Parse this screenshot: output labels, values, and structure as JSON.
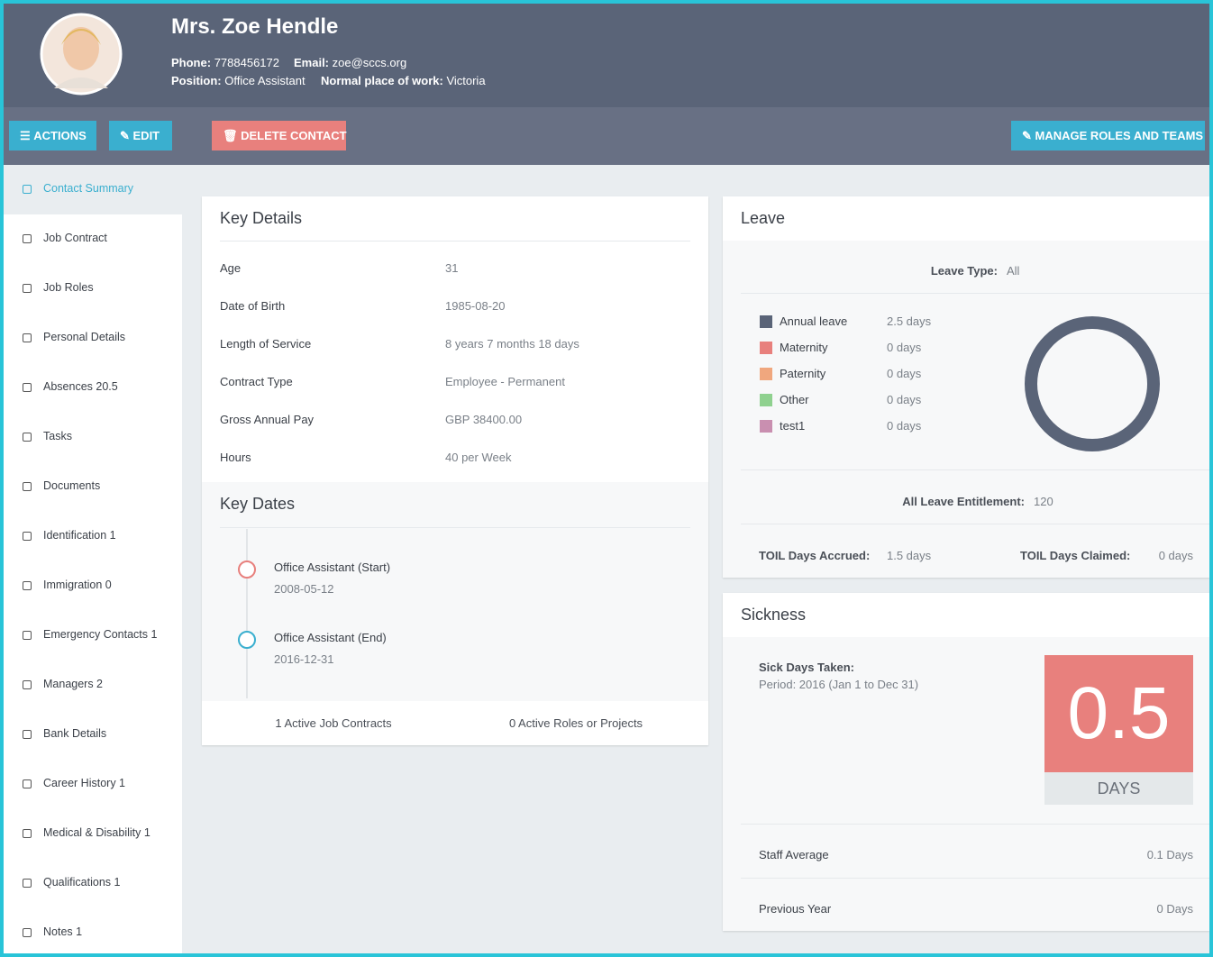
{
  "header": {
    "name": "Mrs. Zoe Hendle",
    "fields": [
      {
        "label": "Phone:",
        "value": "7788456172"
      },
      {
        "label": "Email:",
        "value": "zoe@sccs.org"
      },
      {
        "label": "Position:",
        "value": "Office Assistant"
      },
      {
        "label": "Normal place of work:",
        "value": "Victoria"
      }
    ]
  },
  "toolbar": {
    "buttons": [
      "ACTIONS",
      "EDIT",
      "DELETE CONTACT",
      "MANAGE ROLES AND TEAMS"
    ]
  },
  "sidebar": {
    "items": [
      "Contact Summary",
      "Job Contract",
      "Job Roles",
      "Personal Details",
      "Absences 20.5",
      "Tasks",
      "Documents",
      "Identification 1",
      "Immigration 0",
      "Emergency Contacts 1",
      "Managers 2",
      "Bank Details",
      "Career History 1",
      "Medical & Disability 1",
      "Qualifications 1",
      "Notes 1"
    ]
  },
  "key_details": {
    "title": "Key Details",
    "rows": [
      [
        "Age",
        "31"
      ],
      [
        "Date of Birth",
        "1985-08-20"
      ],
      [
        "Length of Service",
        "8 years 7 months 18 days"
      ],
      [
        "Contract Type",
        "Employee - Permanent"
      ],
      [
        "Gross Annual Pay",
        "GBP 38400.00"
      ],
      [
        "Hours",
        "40 per Week"
      ]
    ]
  },
  "key_dates": {
    "title": "Key Dates",
    "events": [
      {
        "title": "Office Assistant (Start)",
        "date": "2008-05-12",
        "color": "#e8807d"
      },
      {
        "title": "Office Assistant (End)",
        "date": "2016-12-31",
        "color": "#3aafcf"
      }
    ],
    "footer": [
      "1 Active Job Contracts",
      "0 Active Roles or Projects"
    ]
  },
  "leave": {
    "title": "Leave",
    "filter_label": "Leave Type:",
    "filter_value": "All",
    "types": [
      {
        "name": "Annual leave",
        "color": "#5a6478",
        "value": "2.5 days"
      },
      {
        "name": "Maternity",
        "color": "#e8807d",
        "value": "0 days"
      },
      {
        "name": "Paternity",
        "color": "#f0a77e",
        "value": "0 days"
      },
      {
        "name": "Other",
        "color": "#8fd18f",
        "value": "0 days"
      },
      {
        "name": "test1",
        "color": "#c98fb0",
        "value": "0 days"
      }
    ],
    "entitlement_label": "All Leave Entitlement:",
    "entitlement_value": "120",
    "toil": [
      {
        "label": "TOIL Days Accrued:",
        "value": "1.5 days"
      },
      {
        "label": "TOIL Days Claimed:",
        "value": "0 days"
      }
    ]
  },
  "sickness": {
    "title": "Sickness",
    "taken_label": "Sick Days Taken:",
    "period": "Period: 2016 (Jan 1 to Dec 31)",
    "value": "0.5",
    "unit": "DAYS",
    "rows": [
      {
        "label": "Staff Average",
        "value": "0.1 Days"
      },
      {
        "label": "Previous Year",
        "value": "0 Days"
      }
    ]
  }
}
